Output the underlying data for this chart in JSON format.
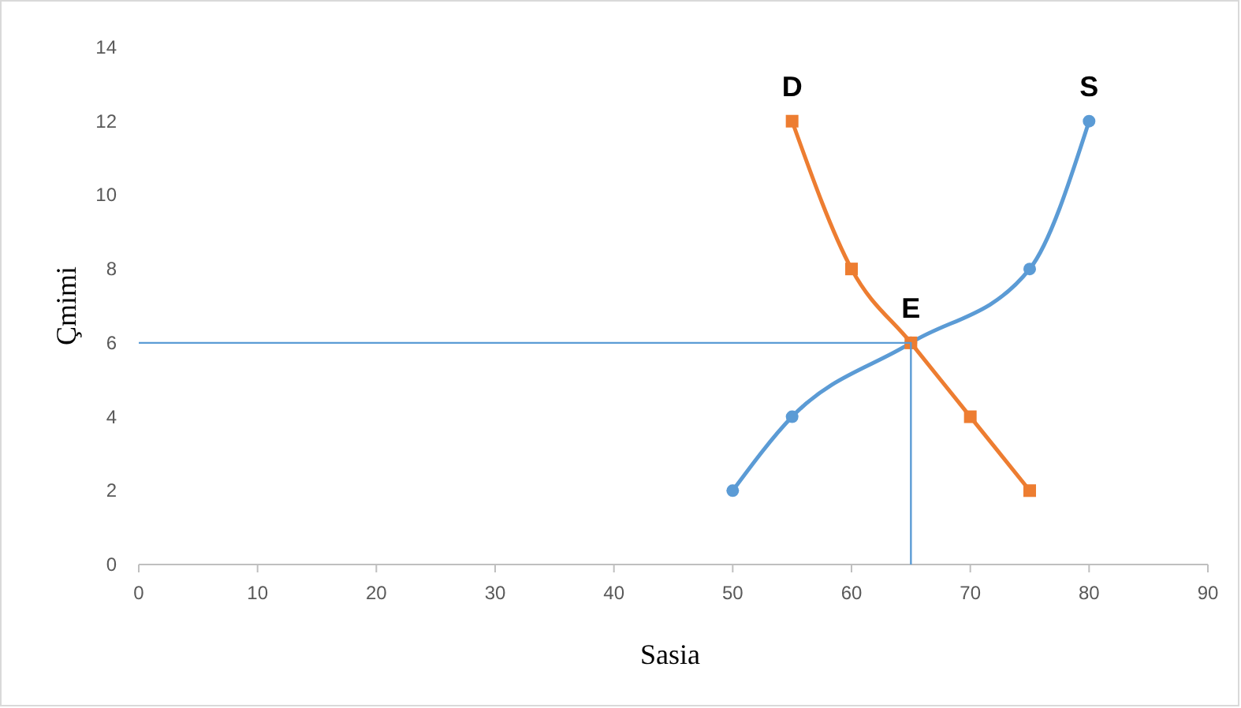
{
  "chart_data": {
    "type": "line",
    "xlabel": "Sasia",
    "ylabel": "Çmimi",
    "xlim": [
      0,
      90
    ],
    "xticks": [
      0,
      10,
      20,
      30,
      40,
      50,
      60,
      70,
      80,
      90
    ],
    "ylim": [
      0,
      14
    ],
    "yticks": [
      0,
      2,
      4,
      6,
      8,
      10,
      12,
      14
    ],
    "grid": false,
    "legend": false,
    "series": [
      {
        "name": "S",
        "color": "#5b9bd5",
        "marker": "circle",
        "x": [
          50,
          55,
          65,
          75,
          80
        ],
        "values": [
          2,
          4,
          6,
          8,
          12
        ]
      },
      {
        "name": "D",
        "color": "#ed7d31",
        "marker": "square",
        "x": [
          55,
          60,
          65,
          70,
          75
        ],
        "values": [
          12,
          8,
          6,
          4,
          2
        ]
      },
      {
        "color": "#5b9bd5",
        "marker": "none",
        "x": [
          0,
          65,
          65
        ],
        "values": [
          6,
          6,
          0
        ]
      }
    ],
    "annotations": [
      {
        "text": "E",
        "x": 65,
        "y": 6
      }
    ]
  }
}
